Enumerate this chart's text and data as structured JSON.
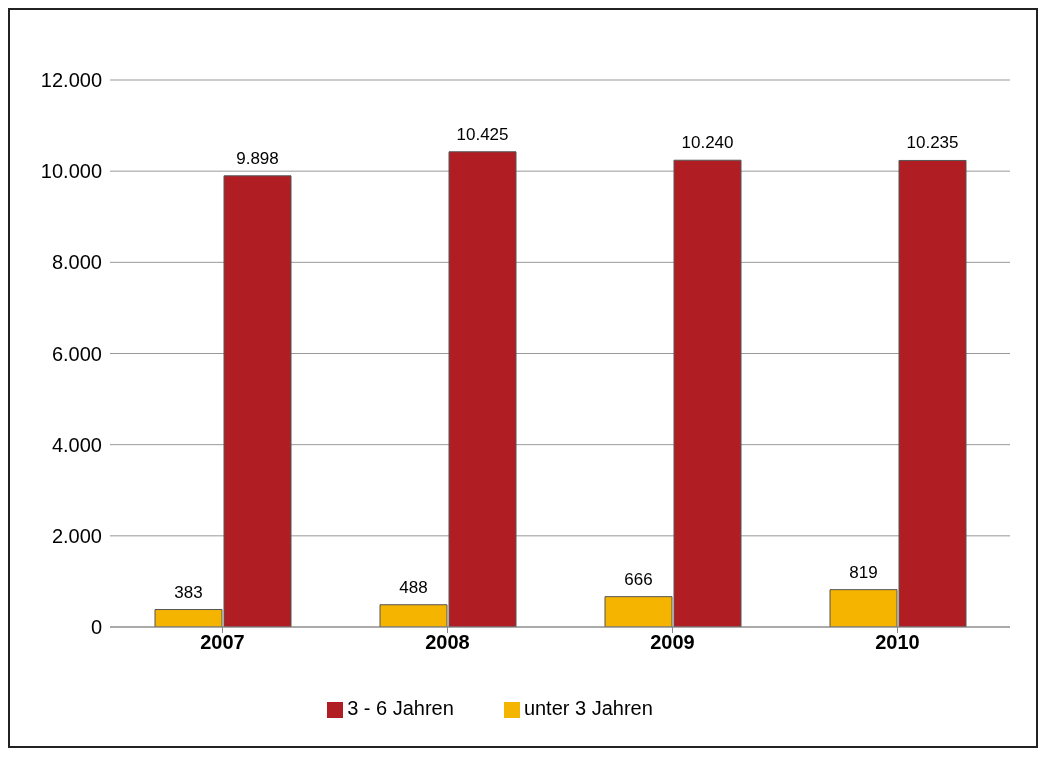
{
  "chart_data": {
    "type": "bar",
    "categories": [
      "2007",
      "2008",
      "2009",
      "2010"
    ],
    "series": [
      {
        "name": "unter 3 Jahren",
        "color": "#f5b400",
        "values": [
          383,
          488,
          666,
          819
        ],
        "value_labels": [
          "383",
          "488",
          "666",
          "819"
        ]
      },
      {
        "name": "3 - 6 Jahren",
        "color": "#b01e23",
        "values": [
          9898,
          10425,
          10240,
          10235
        ],
        "value_labels": [
          "9.898",
          "10.425",
          "10.240",
          "10.235"
        ]
      }
    ],
    "ylim": [
      0,
      12000
    ],
    "yticks": [
      {
        "value": 0,
        "label": "0"
      },
      {
        "value": 2000,
        "label": "2.000"
      },
      {
        "value": 4000,
        "label": "4.000"
      },
      {
        "value": 6000,
        "label": "6.000"
      },
      {
        "value": 8000,
        "label": "8.000"
      },
      {
        "value": 10000,
        "label": "10.000"
      },
      {
        "value": 12000,
        "label": "12.000"
      }
    ],
    "grid": "y",
    "legend": "bottom"
  }
}
